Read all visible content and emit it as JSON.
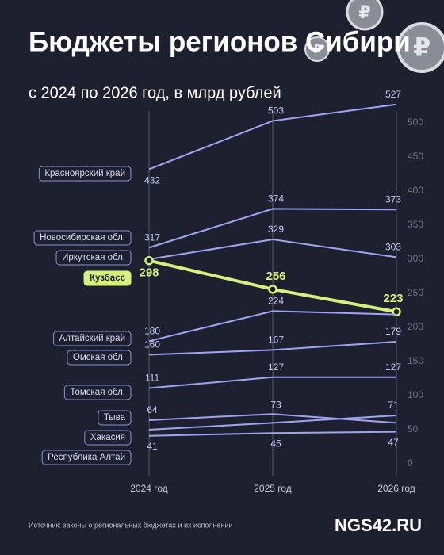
{
  "chart_data": {
    "type": "line",
    "title": "Бюджеты регионов Сибири",
    "subtitle": "с 2024 по 2026 год, в млрд рублей",
    "categories": [
      "2024 год",
      "2025 год",
      "2026 год"
    ],
    "ylim": [
      0,
      500
    ],
    "yticks": [
      0,
      50,
      100,
      150,
      200,
      250,
      300,
      350,
      400,
      450,
      500
    ],
    "series": [
      {
        "name": "Красноярский край",
        "color": "#9ea6f2",
        "values": [
          432,
          503,
          527
        ],
        "value_labels": [
          "432",
          "503",
          "527"
        ]
      },
      {
        "name": "Новосибирская обл.",
        "color": "#9ea6f2",
        "values": [
          317,
          374,
          373
        ],
        "value_labels": [
          "317",
          "374",
          "373"
        ]
      },
      {
        "name": "Иркутская обл.",
        "color": "#9ea6f2",
        "values": [
          300,
          329,
          303
        ],
        "value_labels": [
          null,
          "329",
          "303"
        ]
      },
      {
        "name": "Кузбасс",
        "color": "#d6f07c",
        "values": [
          298,
          256,
          223
        ],
        "value_labels": [
          "298",
          "256",
          "223"
        ]
      },
      {
        "name": "Алтайский край",
        "color": "#9ea6f2",
        "values": [
          180,
          224,
          219
        ],
        "value_labels": [
          "180",
          "224",
          null
        ]
      },
      {
        "name": "Омская обл.",
        "color": "#9ea6f2",
        "values": [
          160,
          167,
          179
        ],
        "value_labels": [
          "160",
          "167",
          "179"
        ]
      },
      {
        "name": "Томская обл.",
        "color": "#9ea6f2",
        "values": [
          111,
          127,
          127
        ],
        "value_labels": [
          "111",
          "127",
          "127"
        ]
      },
      {
        "name": "Тыва",
        "color": "#9ea6f2",
        "values": [
          64,
          73,
          60
        ],
        "value_labels": [
          "64",
          "73",
          null
        ]
      },
      {
        "name": "Хакасия",
        "color": "#9ea6f2",
        "values": [
          50,
          60,
          71
        ],
        "value_labels": [
          null,
          null,
          "71"
        ]
      },
      {
        "name": "Республика Алтай",
        "color": "#9ea6f2",
        "values": [
          41,
          45,
          47
        ],
        "value_labels": [
          "41",
          "45",
          "47"
        ]
      }
    ],
    "highlight": "Кузбасс",
    "source": "Источник: законы о региональных бюджетах и их исполнении",
    "brand": "NGS42.RU"
  }
}
